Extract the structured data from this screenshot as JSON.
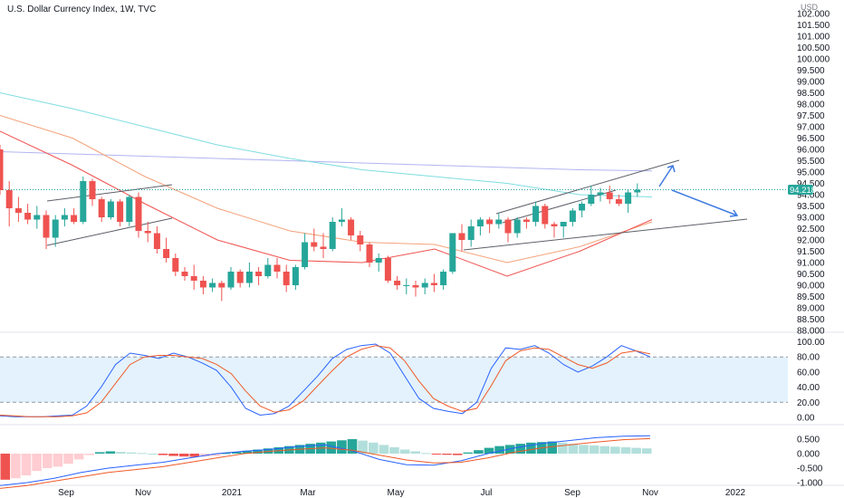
{
  "header": {
    "symbol_line": "U.S. Dollar Currency Index, 1W, TVC",
    "currency": "USD",
    "price_label": "94.218"
  },
  "colors": {
    "up": "#26a69a",
    "down": "#ef5350",
    "ma_slow": "#b2b5f0",
    "ma_mid": "#7fdde0",
    "ma_fast": "#f4a27a",
    "ma_faster": "#ef5350",
    "trendline": "#5d6069",
    "arrow": "#3f7be0",
    "stoch_k": "#2962ff",
    "stoch_d": "#f05a28",
    "band": "#e3f2fd",
    "macd_pos_strong": "#26a69a",
    "macd_pos_weak": "#b2dfdb",
    "macd_neg_strong": "#ef5350",
    "macd_neg_weak": "#ffcdd2"
  },
  "chart_data": [
    {
      "type": "candlestick",
      "pane": "price",
      "title": "U.S. Dollar Currency Index, 1W, TVC",
      "ylabel": "USD",
      "ylim": [
        87.5,
        102.5
      ],
      "yticks": [
        "102.000",
        "101.500",
        "101.000",
        "100.500",
        "100.000",
        "99.500",
        "99.000",
        "98.500",
        "98.000",
        "97.500",
        "97.000",
        "96.500",
        "96.000",
        "95.500",
        "95.000",
        "94.500",
        "94.000",
        "93.500",
        "93.000",
        "92.500",
        "92.000",
        "91.500",
        "91.000",
        "90.500",
        "90.000",
        "89.500",
        "89.000",
        "88.500",
        "88.000"
      ],
      "last_price": "94.218",
      "candles": [
        {
          "o": 96.0,
          "h": 96.2,
          "l": 94.0,
          "c": 94.2
        },
        {
          "o": 94.2,
          "h": 94.6,
          "l": 92.6,
          "c": 93.4
        },
        {
          "o": 93.4,
          "h": 93.9,
          "l": 92.8,
          "c": 93.2
        },
        {
          "o": 93.2,
          "h": 93.6,
          "l": 92.7,
          "c": 92.9
        },
        {
          "o": 92.9,
          "h": 93.5,
          "l": 92.5,
          "c": 93.1
        },
        {
          "o": 93.1,
          "h": 93.3,
          "l": 91.6,
          "c": 92.1
        },
        {
          "o": 92.1,
          "h": 93.1,
          "l": 91.7,
          "c": 92.9
        },
        {
          "o": 92.9,
          "h": 93.4,
          "l": 92.6,
          "c": 93.1
        },
        {
          "o": 93.1,
          "h": 93.4,
          "l": 92.7,
          "c": 92.8
        },
        {
          "o": 92.8,
          "h": 94.8,
          "l": 92.7,
          "c": 94.6
        },
        {
          "o": 94.6,
          "h": 94.7,
          "l": 93.5,
          "c": 93.8
        },
        {
          "o": 93.8,
          "h": 93.9,
          "l": 92.8,
          "c": 93.0
        },
        {
          "o": 93.0,
          "h": 93.8,
          "l": 92.9,
          "c": 93.7
        },
        {
          "o": 93.7,
          "h": 93.8,
          "l": 92.6,
          "c": 92.8
        },
        {
          "o": 92.8,
          "h": 94.0,
          "l": 92.6,
          "c": 93.9
        },
        {
          "o": 93.9,
          "h": 94.1,
          "l": 92.1,
          "c": 92.4
        },
        {
          "o": 92.4,
          "h": 92.8,
          "l": 91.9,
          "c": 92.3
        },
        {
          "o": 92.3,
          "h": 92.6,
          "l": 91.4,
          "c": 91.6
        },
        {
          "o": 91.6,
          "h": 92.1,
          "l": 91.0,
          "c": 91.2
        },
        {
          "o": 91.2,
          "h": 91.4,
          "l": 90.4,
          "c": 90.6
        },
        {
          "o": 90.6,
          "h": 90.8,
          "l": 90.2,
          "c": 90.4
        },
        {
          "o": 90.4,
          "h": 90.9,
          "l": 89.8,
          "c": 90.2
        },
        {
          "o": 90.2,
          "h": 90.4,
          "l": 89.6,
          "c": 89.9
        },
        {
          "o": 89.9,
          "h": 90.3,
          "l": 89.7,
          "c": 90.1
        },
        {
          "o": 90.1,
          "h": 90.2,
          "l": 89.3,
          "c": 89.9
        },
        {
          "o": 89.9,
          "h": 90.8,
          "l": 89.8,
          "c": 90.6
        },
        {
          "o": 90.6,
          "h": 90.7,
          "l": 89.9,
          "c": 90.1
        },
        {
          "o": 90.1,
          "h": 91.0,
          "l": 89.9,
          "c": 90.6
        },
        {
          "o": 90.6,
          "h": 90.8,
          "l": 90.0,
          "c": 90.4
        },
        {
          "o": 90.4,
          "h": 91.2,
          "l": 90.3,
          "c": 90.9
        },
        {
          "o": 90.9,
          "h": 91.2,
          "l": 90.3,
          "c": 90.6
        },
        {
          "o": 90.6,
          "h": 90.9,
          "l": 89.7,
          "c": 90.0
        },
        {
          "o": 90.0,
          "h": 90.9,
          "l": 89.8,
          "c": 90.8
        },
        {
          "o": 90.8,
          "h": 92.3,
          "l": 90.7,
          "c": 91.9
        },
        {
          "o": 91.9,
          "h": 92.5,
          "l": 91.5,
          "c": 91.7
        },
        {
          "o": 91.7,
          "h": 92.3,
          "l": 91.2,
          "c": 91.6
        },
        {
          "o": 91.6,
          "h": 93.0,
          "l": 91.5,
          "c": 92.8
        },
        {
          "o": 92.8,
          "h": 93.4,
          "l": 92.6,
          "c": 92.9
        },
        {
          "o": 92.9,
          "h": 93.0,
          "l": 92.0,
          "c": 92.2
        },
        {
          "o": 92.2,
          "h": 92.4,
          "l": 91.5,
          "c": 91.8
        },
        {
          "o": 91.8,
          "h": 91.9,
          "l": 90.8,
          "c": 91.0
        },
        {
          "o": 91.0,
          "h": 91.4,
          "l": 90.6,
          "c": 91.2
        },
        {
          "o": 91.2,
          "h": 91.3,
          "l": 90.1,
          "c": 90.2
        },
        {
          "o": 90.2,
          "h": 90.4,
          "l": 89.8,
          "c": 90.0
        },
        {
          "o": 90.0,
          "h": 90.3,
          "l": 89.6,
          "c": 90.0
        },
        {
          "o": 90.0,
          "h": 90.2,
          "l": 89.5,
          "c": 89.9
        },
        {
          "o": 89.9,
          "h": 90.3,
          "l": 89.6,
          "c": 90.1
        },
        {
          "o": 90.1,
          "h": 90.5,
          "l": 89.7,
          "c": 90.0
        },
        {
          "o": 90.0,
          "h": 90.7,
          "l": 89.8,
          "c": 90.6
        },
        {
          "o": 90.6,
          "h": 92.3,
          "l": 90.5,
          "c": 92.3
        },
        {
          "o": 92.3,
          "h": 92.7,
          "l": 91.5,
          "c": 92.0
        },
        {
          "o": 92.0,
          "h": 92.9,
          "l": 91.7,
          "c": 92.6
        },
        {
          "o": 92.6,
          "h": 93.0,
          "l": 92.2,
          "c": 92.9
        },
        {
          "o": 92.9,
          "h": 93.0,
          "l": 92.3,
          "c": 92.7
        },
        {
          "o": 92.7,
          "h": 93.2,
          "l": 92.5,
          "c": 92.9
        },
        {
          "o": 92.9,
          "h": 93.0,
          "l": 91.9,
          "c": 92.3
        },
        {
          "o": 92.3,
          "h": 93.0,
          "l": 92.1,
          "c": 92.9
        },
        {
          "o": 92.9,
          "h": 93.0,
          "l": 92.5,
          "c": 92.8
        },
        {
          "o": 92.8,
          "h": 93.7,
          "l": 92.6,
          "c": 93.5
        },
        {
          "o": 93.5,
          "h": 93.6,
          "l": 92.5,
          "c": 92.7
        },
        {
          "o": 92.7,
          "h": 92.8,
          "l": 92.1,
          "c": 92.6
        },
        {
          "o": 92.6,
          "h": 92.8,
          "l": 92.1,
          "c": 92.8
        },
        {
          "o": 92.8,
          "h": 93.4,
          "l": 92.6,
          "c": 93.3
        },
        {
          "o": 93.3,
          "h": 93.7,
          "l": 93.0,
          "c": 93.6
        },
        {
          "o": 93.6,
          "h": 94.4,
          "l": 93.5,
          "c": 94.0
        },
        {
          "o": 94.0,
          "h": 94.3,
          "l": 93.7,
          "c": 94.1
        },
        {
          "o": 94.1,
          "h": 94.4,
          "l": 93.6,
          "c": 93.8
        },
        {
          "o": 93.8,
          "h": 94.0,
          "l": 93.5,
          "c": 93.6
        },
        {
          "o": 93.6,
          "h": 94.2,
          "l": 93.2,
          "c": 94.1
        },
        {
          "o": 94.1,
          "h": 94.5,
          "l": 93.9,
          "c": 94.22
        }
      ],
      "moving_averages": [
        {
          "name": "",
          "color_key": "ma_slow",
          "values": [
            95.9,
            95.8,
            95.7,
            95.6,
            95.5,
            95.4,
            95.3,
            95.2,
            95.1,
            95.05
          ]
        },
        {
          "name": "",
          "color_key": "ma_mid",
          "values": [
            98.5,
            97.8,
            97.0,
            96.2,
            95.6,
            95.1,
            94.8,
            94.5,
            94.0,
            93.9
          ]
        },
        {
          "name": "",
          "color_key": "ma_fast",
          "values": [
            97.5,
            96.5,
            94.8,
            93.4,
            92.4,
            91.9,
            91.8,
            91.0,
            91.7,
            92.8
          ]
        },
        {
          "name": "",
          "color_key": "ma_faster",
          "values": [
            96.8,
            95.3,
            93.6,
            92.0,
            91.1,
            91.0,
            91.6,
            90.4,
            91.5,
            92.9
          ]
        }
      ],
      "xticks": [
        "Sep",
        "Nov",
        "2021",
        "Mar",
        "May",
        "Jul",
        "Sep",
        "Nov",
        "2022"
      ]
    },
    {
      "type": "line",
      "pane": "stochastic",
      "ylim": [
        0,
        100
      ],
      "yticks": [
        "100.00",
        "80.00",
        "60.00",
        "40.00",
        "20.00",
        "0.00"
      ],
      "band": [
        20,
        80
      ],
      "series": [
        {
          "color_key": "stoch_k",
          "values": [
            2,
            1,
            1,
            1,
            2,
            3,
            15,
            40,
            70,
            85,
            82,
            78,
            85,
            80,
            72,
            62,
            40,
            12,
            3,
            5,
            15,
            35,
            55,
            78,
            90,
            95,
            97,
            85,
            55,
            25,
            12,
            8,
            5,
            20,
            65,
            92,
            90,
            95,
            85,
            70,
            60,
            68,
            80,
            95,
            88,
            80
          ]
        },
        {
          "color_key": "stoch_d",
          "values": [
            3,
            2,
            1,
            1,
            1,
            2,
            6,
            20,
            45,
            70,
            80,
            82,
            82,
            80,
            78,
            70,
            58,
            35,
            15,
            7,
            10,
            22,
            42,
            62,
            80,
            90,
            95,
            92,
            75,
            48,
            25,
            15,
            8,
            12,
            42,
            75,
            88,
            92,
            90,
            80,
            70,
            65,
            72,
            85,
            88,
            84
          ]
        }
      ]
    },
    {
      "type": "bar",
      "pane": "macd",
      "ylim": [
        -1.0,
        0.8
      ],
      "yticks": [
        "0.500",
        "0.000",
        "-0.500",
        "-1.000"
      ],
      "histogram": [
        -0.9,
        -0.85,
        -0.75,
        -0.6,
        -0.5,
        -0.45,
        -0.35,
        -0.2,
        -0.05,
        0.05,
        0.08,
        0.06,
        0.04,
        0.02,
        0.0,
        -0.05,
        -0.08,
        -0.1,
        -0.11,
        -0.1,
        -0.08,
        0.02,
        0.06,
        0.1,
        0.14,
        0.18,
        0.22,
        0.26,
        0.3,
        0.34,
        0.38,
        0.42,
        0.46,
        0.5,
        0.45,
        0.38,
        0.3,
        0.22,
        0.14,
        0.08,
        0.02,
        -0.02,
        -0.04,
        -0.05,
        0.04,
        0.12,
        0.2,
        0.26,
        0.3,
        0.34,
        0.38,
        0.4,
        0.42,
        0.38,
        0.34,
        0.3,
        0.28,
        0.26,
        0.24,
        0.22,
        0.2,
        0.18
      ],
      "series": [
        {
          "color_key": "stoch_k",
          "values": [
            -1.1,
            -1.0,
            -0.85,
            -0.65,
            -0.5,
            -0.4,
            -0.3,
            -0.15,
            0.0,
            0.08,
            0.15,
            0.25,
            0.3,
            0.1,
            -0.2,
            -0.38,
            -0.4,
            -0.25,
            0.0,
            0.2,
            0.35,
            0.45,
            0.55,
            0.6,
            0.62
          ]
        },
        {
          "color_key": "stoch_d",
          "values": [
            -1.2,
            -1.1,
            -0.95,
            -0.8,
            -0.65,
            -0.55,
            -0.45,
            -0.3,
            -0.15,
            0.0,
            0.08,
            0.15,
            0.2,
            0.12,
            -0.05,
            -0.22,
            -0.32,
            -0.3,
            -0.15,
            0.05,
            0.2,
            0.3,
            0.4,
            0.48,
            0.52
          ]
        }
      ]
    }
  ]
}
